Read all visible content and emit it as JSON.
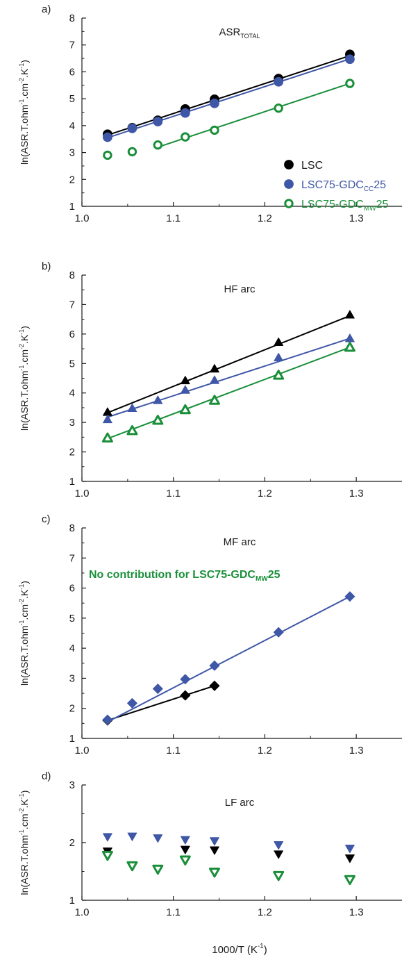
{
  "colors": {
    "LSC": "#000000",
    "CC": "#3f57a7",
    "MW": "#1a8f3a",
    "axis": "#1a1a1a"
  },
  "x_axis_label": "1000/T (K",
  "x_axis_label_sup": "-1",
  "x_axis_label_close": ")",
  "chart_data": [
    {
      "type": "scatter",
      "panel": "a)",
      "title": "ASR",
      "title_sub": "TOTAL",
      "ylabel": {
        "pre": "ln(ASR.T.ohm",
        "s1": "-1",
        "mid1": ".cm",
        "s2": "-2",
        "mid2": ".K",
        "s3": "-1",
        "post": ")"
      },
      "xlim": [
        1.0,
        1.35
      ],
      "ylim": [
        1,
        8
      ],
      "xticks": [
        "1.0",
        "1.1",
        "1.2",
        "1.3"
      ],
      "yticks": [
        "1",
        "2",
        "3",
        "4",
        "5",
        "6",
        "7",
        "8"
      ],
      "legend": {
        "position": "right",
        "entries": [
          {
            "series": 0,
            "name": "LSC",
            "sub": "",
            "suffix": ""
          },
          {
            "series": 1,
            "name": "LSC75-GDC",
            "sub": "CC",
            "suffix": "25"
          },
          {
            "series": 2,
            "name": "LSC75-GDC",
            "sub": "MW",
            "suffix": "25"
          }
        ]
      },
      "series": [
        {
          "color_key": "LSC",
          "marker": "circle-filled",
          "x": [
            1.028,
            1.055,
            1.083,
            1.113,
            1.145,
            1.215,
            1.293
          ],
          "y": [
            3.68,
            3.92,
            4.2,
            4.62,
            4.98,
            5.75,
            6.65
          ],
          "fit": [
            [
              1.028,
              3.65
            ],
            [
              1.293,
              6.6
            ]
          ]
        },
        {
          "color_key": "CC",
          "marker": "circle-filled",
          "x": [
            1.028,
            1.055,
            1.083,
            1.113,
            1.145,
            1.215,
            1.293
          ],
          "y": [
            3.57,
            3.9,
            4.15,
            4.47,
            4.83,
            5.63,
            6.47
          ],
          "fit": [
            [
              1.028,
              3.55
            ],
            [
              1.293,
              6.48
            ]
          ]
        },
        {
          "color_key": "MW",
          "marker": "circle-open",
          "x": [
            1.028,
            1.055,
            1.083,
            1.113,
            1.145,
            1.215,
            1.293
          ],
          "y": [
            2.9,
            3.03,
            3.28,
            3.58,
            3.83,
            4.65,
            5.57
          ],
          "fit": [
            [
              1.083,
              3.2
            ],
            [
              1.293,
              5.57
            ]
          ]
        }
      ]
    },
    {
      "type": "scatter",
      "panel": "b)",
      "title": "HF arc",
      "title_sub": "",
      "ylabel": {
        "pre": "ln(ASR.T.ohm",
        "s1": "-1",
        "mid1": ".cm",
        "s2": "-2",
        "mid2": ".K",
        "s3": "-1",
        "post": ")"
      },
      "xlim": [
        1.0,
        1.35
      ],
      "ylim": [
        1,
        8
      ],
      "xticks": [
        "1.0",
        "1.1",
        "1.2",
        "1.3"
      ],
      "yticks": [
        "1",
        "2",
        "3",
        "4",
        "5",
        "6",
        "7",
        "8"
      ],
      "series": [
        {
          "color_key": "LSC",
          "marker": "triangle-up-filled",
          "x": [
            1.028,
            1.113,
            1.145,
            1.215,
            1.293
          ],
          "y": [
            3.35,
            4.42,
            4.82,
            5.72,
            6.65
          ],
          "fit": [
            [
              1.028,
              3.33
            ],
            [
              1.293,
              6.62
            ]
          ]
        },
        {
          "color_key": "CC",
          "marker": "triangle-up-filled",
          "x": [
            1.028,
            1.055,
            1.083,
            1.113,
            1.145,
            1.215,
            1.293
          ],
          "y": [
            3.1,
            3.48,
            3.75,
            4.1,
            4.43,
            5.2,
            5.85
          ],
          "fit": [
            [
              1.028,
              3.18
            ],
            [
              1.293,
              5.85
            ]
          ]
        },
        {
          "color_key": "MW",
          "marker": "triangle-up-open",
          "x": [
            1.028,
            1.055,
            1.083,
            1.113,
            1.145,
            1.215,
            1.293
          ],
          "y": [
            2.47,
            2.72,
            3.07,
            3.43,
            3.75,
            4.6,
            5.55
          ],
          "fit": [
            [
              1.028,
              2.45
            ],
            [
              1.293,
              5.55
            ]
          ]
        }
      ]
    },
    {
      "type": "scatter",
      "panel": "c)",
      "title": "MF arc",
      "title_sub": "",
      "note": {
        "text": "No contribution for LSC75-GDC",
        "sub": "MW",
        "suffix": "25"
      },
      "ylabel": {
        "pre": "ln(ASR.T.ohm",
        "s1": "-1",
        "mid1": ".cm",
        "s2": "-2",
        "mid2": ".K",
        "s3": "-1",
        "post": ")"
      },
      "xlim": [
        1.0,
        1.35
      ],
      "ylim": [
        1,
        8
      ],
      "xticks": [
        "1.0",
        "1.1",
        "1.2",
        "1.3"
      ],
      "yticks": [
        "1",
        "2",
        "3",
        "4",
        "5",
        "6",
        "7",
        "8"
      ],
      "series": [
        {
          "color_key": "LSC",
          "marker": "diamond-filled",
          "x": [
            1.028,
            1.113,
            1.145
          ],
          "y": [
            1.6,
            2.43,
            2.75
          ],
          "fit": [
            [
              1.028,
              1.6
            ],
            [
              1.145,
              2.75
            ]
          ]
        },
        {
          "color_key": "CC",
          "marker": "diamond-filled",
          "x": [
            1.028,
            1.055,
            1.083,
            1.113,
            1.145,
            1.215,
            1.293
          ],
          "y": [
            1.62,
            2.17,
            2.65,
            2.97,
            3.42,
            4.53,
            5.72
          ],
          "fit": [
            [
              1.028,
              1.55
            ],
            [
              1.293,
              5.72
            ]
          ]
        }
      ]
    },
    {
      "type": "scatter",
      "panel": "d)",
      "title": "LF arc",
      "title_sub": "",
      "ylabel": {
        "pre": "ln(ASR.T.ohm",
        "s1": "-1",
        "mid1": ".cm",
        "s2": "-2",
        "mid2": ".K",
        "s3": "-1",
        "post": ")"
      },
      "xlim": [
        1.0,
        1.35
      ],
      "ylim": [
        1,
        3
      ],
      "xticks": [
        "1.0",
        "1.1",
        "1.2",
        "1.3"
      ],
      "yticks": [
        "1",
        "2",
        "3"
      ],
      "series": [
        {
          "color_key": "CC",
          "marker": "triangle-down-filled",
          "x": [
            1.028,
            1.055,
            1.083,
            1.113,
            1.145,
            1.215,
            1.293
          ],
          "y": [
            2.1,
            2.11,
            2.08,
            2.05,
            2.03,
            1.96,
            1.9
          ],
          "fit": null
        },
        {
          "color_key": "LSC",
          "marker": "triangle-down-filled",
          "x": [
            1.028,
            1.113,
            1.145,
            1.215,
            1.293
          ],
          "y": [
            1.85,
            1.88,
            1.87,
            1.8,
            1.73
          ],
          "fit": null
        },
        {
          "color_key": "MW",
          "marker": "triangle-down-open",
          "x": [
            1.028,
            1.055,
            1.083,
            1.113,
            1.145,
            1.215,
            1.293
          ],
          "y": [
            1.78,
            1.6,
            1.54,
            1.7,
            1.49,
            1.43,
            1.36
          ],
          "fit": null
        }
      ]
    }
  ]
}
